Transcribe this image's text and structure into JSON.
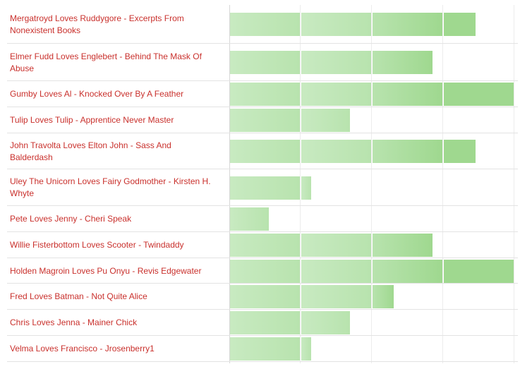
{
  "chart_data": {
    "type": "bar",
    "orientation": "horizontal",
    "segment_value": 1,
    "max": 4,
    "colors": {
      "label": "#c9302c",
      "bar_light": "#c8eac1",
      "bar_mid": "#b8e3ae",
      "bar_dark": "#9fd88f"
    },
    "categories": [
      "Mergatroyd Loves Ruddygore - Excerpts From Nonexistent Books",
      "Elmer Fudd Loves Englebert - Behind The Mask Of Abuse",
      "Gumby Loves Al - Knocked Over By A Feather",
      "Tulip Loves Tulip - Apprentice Never Master",
      "John Travolta Loves Elton John - Sass And Balderdash",
      "Uley The Unicorn Loves Fairy Godmother - Kirsten H. Whyte",
      "Pete Loves Jenny - Cheri Speak",
      "Willie Fisterbottom Loves Scooter - Twindaddy",
      "Holden Magroin Loves Pu Onyu - Revis Edgewater",
      "Fred Loves Batman - Not Quite Alice",
      "Chris Loves Jenna - Mainer Chick",
      "Velma Loves Francisco - Jrosenberry1"
    ],
    "values": [
      3.45,
      2.86,
      4.0,
      1.7,
      3.45,
      1.14,
      0.56,
      2.86,
      4.0,
      2.3,
      1.7,
      1.14
    ]
  }
}
